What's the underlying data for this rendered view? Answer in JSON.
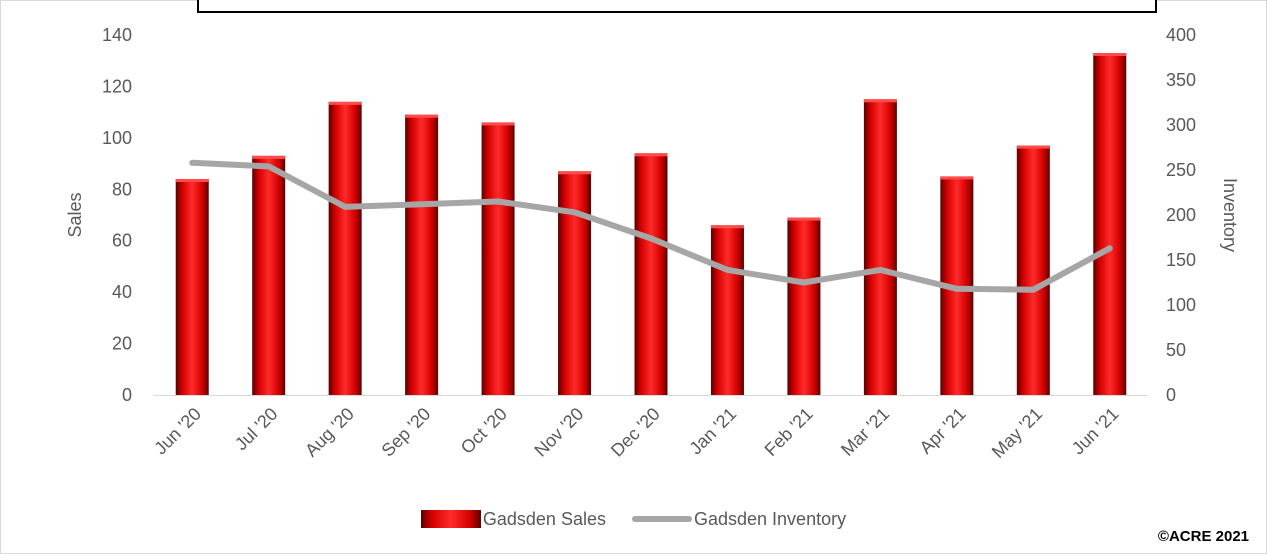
{
  "chart_data": {
    "type": "bar",
    "categories": [
      "Jun '20",
      "Jul '20",
      "Aug '20",
      "Sep '20",
      "Oct '20",
      "Nov '20",
      "Dec '20",
      "Jan '21",
      "Feb '21",
      "Mar '21",
      "Apr '21",
      "May '21",
      "Jun '21"
    ],
    "series": [
      {
        "name": "Gadsden Sales",
        "type": "bar",
        "axis": "left",
        "values": [
          84,
          93,
          114,
          109,
          106,
          87,
          94,
          66,
          69,
          115,
          85,
          97,
          133
        ]
      },
      {
        "name": "Gadsden Inventory",
        "type": "line",
        "axis": "right",
        "values": [
          258,
          254,
          209,
          212,
          215,
          203,
          174,
          139,
          125,
          139,
          118,
          117,
          163
        ]
      }
    ],
    "ylabel": "Sales",
    "y2label": "Inventory",
    "ylim": [
      0,
      140
    ],
    "y2lim": [
      0,
      400
    ],
    "yticks": [
      "0",
      "20",
      "40",
      "60",
      "80",
      "100",
      "120",
      "140"
    ],
    "y2ticks": [
      "0",
      "50",
      "100",
      "150",
      "200",
      "250",
      "300",
      "350",
      "400"
    ],
    "grid": false,
    "legend": "bottom",
    "colors": {
      "bar": "#d40000",
      "bar_dark": "#5a0000",
      "line": "#a6a6a6",
      "text": "#595959"
    }
  },
  "footer": {
    "copyright": "©ACRE 2021"
  }
}
